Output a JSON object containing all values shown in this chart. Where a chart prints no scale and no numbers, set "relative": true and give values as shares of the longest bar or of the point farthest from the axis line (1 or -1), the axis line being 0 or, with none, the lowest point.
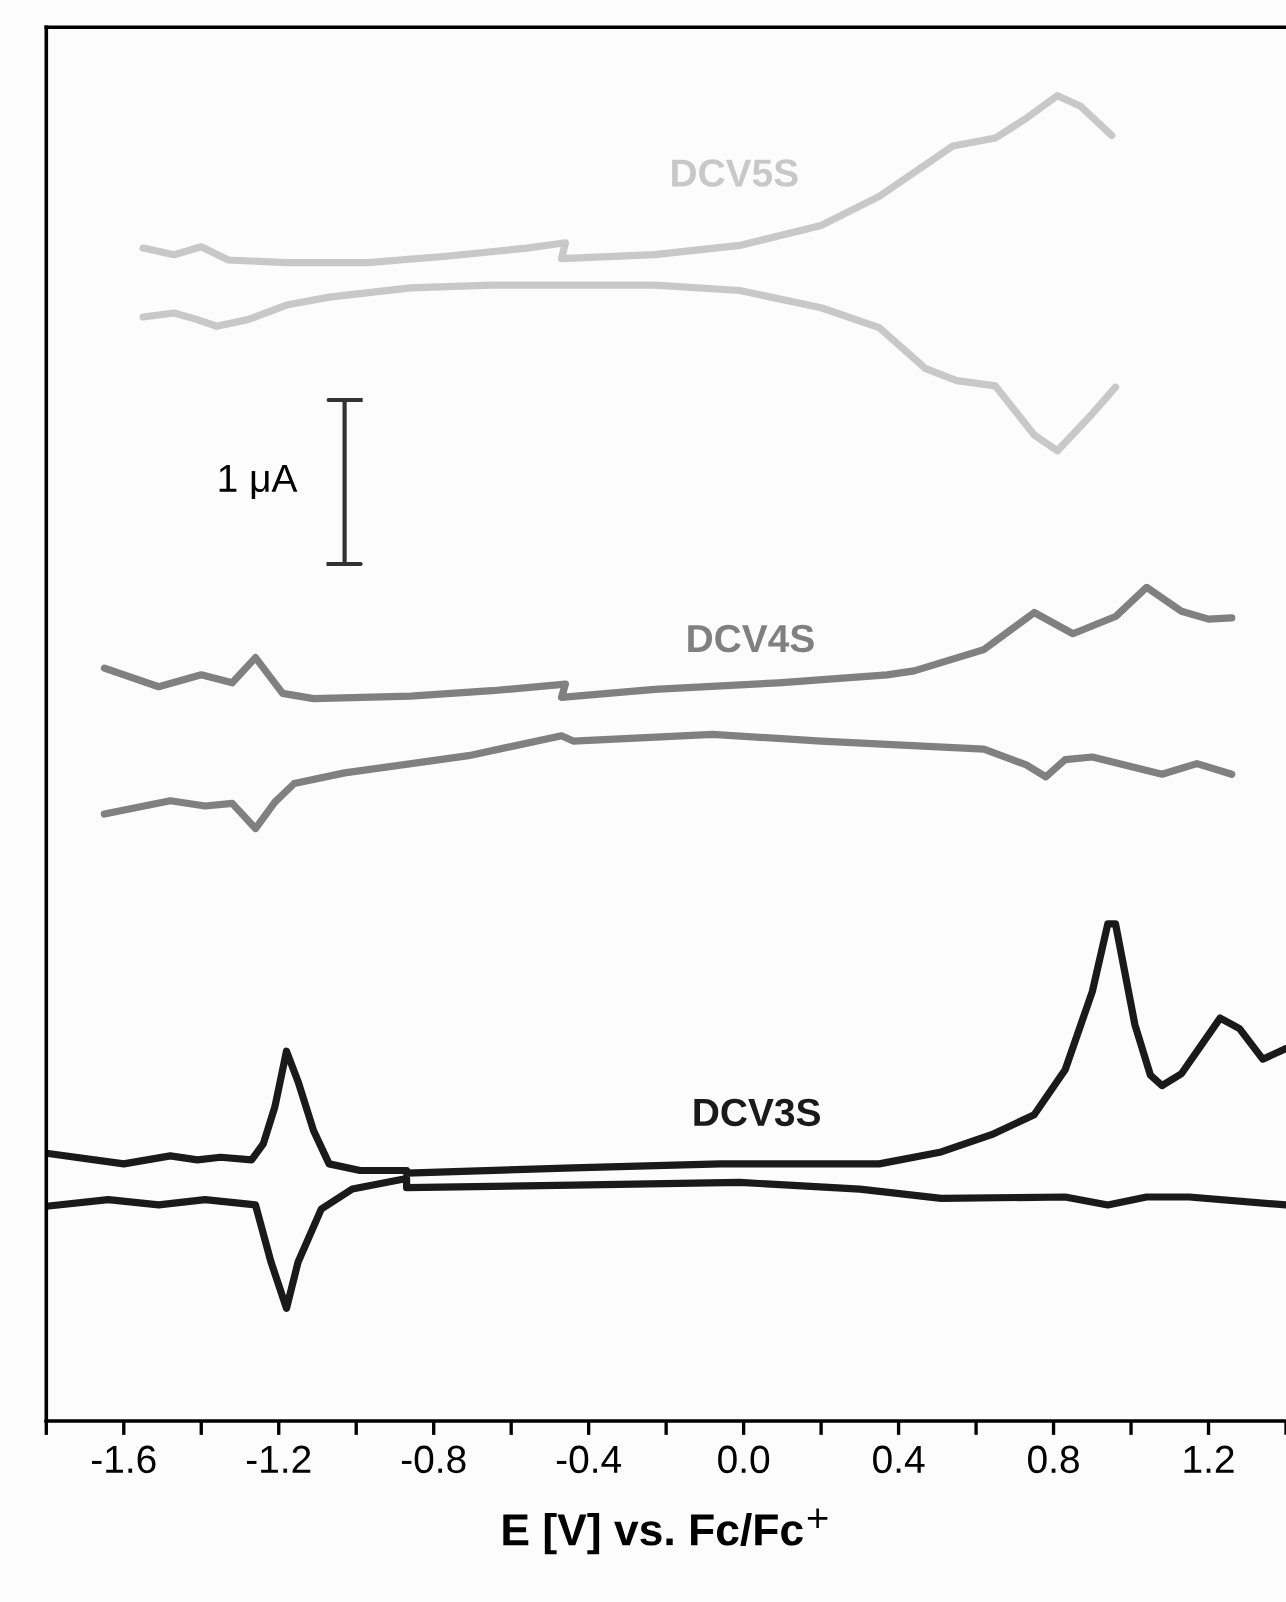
{
  "chart_data": {
    "type": "line",
    "relative": true,
    "xlabel": "E [V] vs. Fc/Fc$^{+}$",
    "annotations": [
      "1 μA"
    ],
    "xlim": [
      -1.8,
      1.4
    ],
    "xticks": [
      {
        "value": -1.8,
        "label": null
      },
      -1.6,
      {
        "value": -1.4,
        "label": null
      },
      -1.2,
      {
        "value": -1.0,
        "label": null
      },
      -0.8,
      {
        "value": -0.6,
        "label": null
      },
      -0.4,
      {
        "value": -0.2,
        "label": null
      },
      {
        "value": 0.0,
        "label": "0.0"
      },
      {
        "value": 0.2,
        "label": null
      },
      0.4,
      {
        "value": 0.6,
        "label": null
      },
      0.8,
      {
        "value": 1.0,
        "label": null
      },
      1.2,
      {
        "value": 1.4,
        "label": null
      }
    ],
    "tick_labels": "x",
    "grid": false,
    "legend": false,
    "line_style": "solid",
    "marker": "none",
    "series": [
      {
        "name": "DCV5S",
        "color": "#c8c8c8",
        "x": [
          -1.55,
          -1.47,
          -1.4,
          -1.33,
          -1.18,
          -0.97,
          -0.76,
          -0.56,
          -0.46,
          -0.47,
          -0.23,
          -0.01,
          0.2,
          0.35,
          0.54,
          0.65,
          0.73,
          0.81,
          0.87,
          0.95,
          null,
          0.96,
          0.9,
          0.81,
          0.75,
          0.65,
          0.55,
          0.47,
          0.35,
          0.2,
          -0.01,
          -0.23,
          -0.46,
          -0.65,
          -0.86,
          -1.07,
          -1.18,
          -1.28,
          -1.36,
          -1.41,
          -1.47,
          -1.55
        ],
        "values": [
          0.885,
          0.88,
          0.886,
          0.876,
          0.874,
          0.874,
          0.879,
          0.885,
          0.889,
          0.877,
          0.88,
          0.887,
          0.902,
          0.924,
          0.962,
          0.968,
          0.983,
          1.0,
          0.992,
          0.97,
          null,
          0.78,
          0.76,
          0.732,
          0.744,
          0.781,
          0.785,
          0.794,
          0.825,
          0.84,
          0.853,
          0.857,
          0.857,
          0.857,
          0.855,
          0.848,
          0.842,
          0.831,
          0.826,
          0.831,
          0.836,
          0.833
        ]
      },
      {
        "name": "DCV4S",
        "color": "#808080",
        "x": [
          -1.65,
          -1.51,
          -1.4,
          -1.32,
          -1.26,
          -1.19,
          -1.11,
          -0.86,
          -0.65,
          -0.46,
          -0.47,
          -0.23,
          0.09,
          0.37,
          0.44,
          0.62,
          0.75,
          0.85,
          0.96,
          1.04,
          1.13,
          1.2,
          1.26,
          null,
          1.26,
          1.17,
          1.08,
          0.9,
          0.83,
          0.78,
          0.73,
          0.62,
          0.41,
          0.2,
          -0.08,
          -0.44,
          -0.47,
          -0.71,
          -1.03,
          -1.16,
          -1.21,
          -1.26,
          -1.32,
          -1.39,
          -1.48,
          -1.65
        ],
        "values": [
          0.568,
          0.554,
          0.563,
          0.557,
          0.576,
          0.549,
          0.545,
          0.547,
          0.551,
          0.556,
          0.546,
          0.552,
          0.557,
          0.563,
          0.566,
          0.582,
          0.61,
          0.594,
          0.607,
          0.629,
          0.611,
          0.605,
          0.606,
          null,
          0.488,
          0.496,
          0.488,
          0.501,
          0.499,
          0.486,
          0.495,
          0.507,
          0.51,
          0.513,
          0.518,
          0.513,
          0.517,
          0.502,
          0.489,
          0.481,
          0.467,
          0.447,
          0.466,
          0.464,
          0.468,
          0.458
        ]
      },
      {
        "name": "DCV3S",
        "color": "#1a1a1a",
        "x": [
          -1.8,
          -1.6,
          -1.48,
          -1.41,
          -1.35,
          -1.27,
          -1.24,
          -1.21,
          -1.18,
          -1.15,
          -1.11,
          -1.07,
          -0.99,
          -0.87,
          -0.87,
          -0.44,
          -0.06,
          0.35,
          0.51,
          0.64,
          0.75,
          0.83,
          0.9,
          0.94,
          0.96,
          1.01,
          1.05,
          1.08,
          1.13,
          1.23,
          1.28,
          1.34,
          1.4,
          null,
          1.4,
          1.15,
          1.04,
          0.94,
          0.83,
          0.51,
          0.3,
          -0.01,
          -0.44,
          -0.87,
          -0.87,
          -1.01,
          -1.09,
          -1.15,
          -1.18,
          -1.22,
          -1.26,
          -1.39,
          -1.51,
          -1.64,
          -1.8
        ],
        "values": [
          0.202,
          0.194,
          0.2,
          0.197,
          0.199,
          0.197,
          0.209,
          0.237,
          0.279,
          0.256,
          0.219,
          0.194,
          0.189,
          0.189,
          0.187,
          0.191,
          0.194,
          0.194,
          0.203,
          0.216,
          0.231,
          0.265,
          0.324,
          0.375,
          0.375,
          0.299,
          0.261,
          0.253,
          0.262,
          0.304,
          0.296,
          0.273,
          0.281,
          null,
          0.163,
          0.169,
          0.169,
          0.163,
          0.169,
          0.168,
          0.175,
          0.18,
          0.178,
          0.176,
          0.183,
          0.175,
          0.16,
          0.12,
          0.085,
          0.12,
          0.163,
          0.167,
          0.163,
          0.167,
          0.162
        ]
      }
    ]
  }
}
